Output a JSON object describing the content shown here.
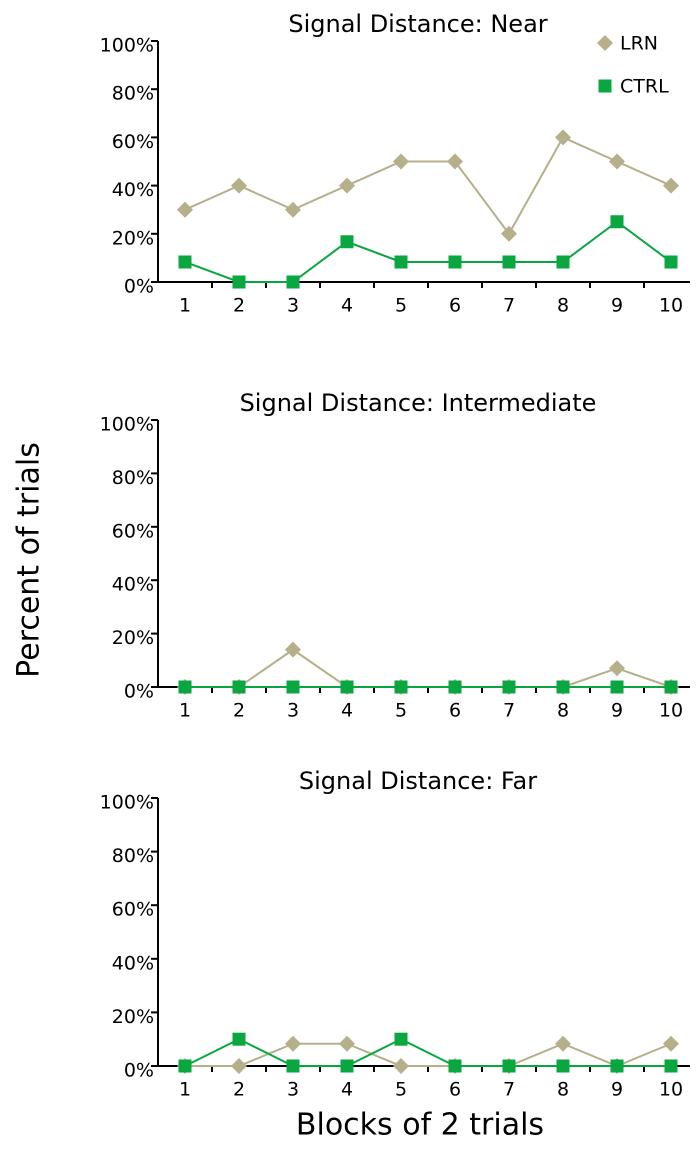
{
  "chart_data": [
    {
      "type": "line",
      "title": "Signal Distance: Near",
      "legend": "upper right",
      "categories": [
        "1",
        "2",
        "3",
        "4",
        "5",
        "6",
        "7",
        "8",
        "9",
        "10"
      ],
      "series": [
        {
          "name": "LRN",
          "color": "#b5b08a",
          "marker": "diamond",
          "values": [
            30,
            40,
            30,
            40,
            50,
            50,
            20,
            60,
            50,
            40
          ]
        },
        {
          "name": "CTRL",
          "color": "#0aa63f",
          "marker": "square",
          "values": [
            8.3,
            0,
            0,
            16.7,
            8.3,
            8.3,
            8.3,
            8.3,
            25,
            8.3
          ]
        }
      ],
      "ylim": [
        0,
        100
      ],
      "yticks": [
        {
          "value": 0,
          "label": "0%"
        },
        {
          "value": 20,
          "label": "20%"
        },
        {
          "value": 40,
          "label": "40%"
        },
        {
          "value": 60,
          "label": "60%"
        },
        {
          "value": 80,
          "label": "80%"
        },
        {
          "value": 100,
          "label": "100%"
        }
      ]
    },
    {
      "type": "line",
      "title": "Signal Distance: Intermediate",
      "categories": [
        "1",
        "2",
        "3",
        "4",
        "5",
        "6",
        "7",
        "8",
        "9",
        "10"
      ],
      "series": [
        {
          "name": "LRN",
          "color": "#b5b08a",
          "marker": "diamond",
          "values": [
            0,
            0,
            14,
            0,
            0,
            0,
            0,
            0,
            7,
            0
          ]
        },
        {
          "name": "CTRL",
          "color": "#0aa63f",
          "marker": "square",
          "values": [
            0,
            0,
            0,
            0,
            0,
            0,
            0,
            0,
            0,
            0
          ]
        }
      ],
      "ylim": [
        0,
        100
      ],
      "yticks": [
        {
          "value": 0,
          "label": "0%"
        },
        {
          "value": 20,
          "label": "20%"
        },
        {
          "value": 40,
          "label": "40%"
        },
        {
          "value": 60,
          "label": "60%"
        },
        {
          "value": 80,
          "label": "80%"
        },
        {
          "value": 100,
          "label": "100%"
        }
      ]
    },
    {
      "type": "line",
      "title": "Signal Distance: Far",
      "categories": [
        "1",
        "2",
        "3",
        "4",
        "5",
        "6",
        "7",
        "8",
        "9",
        "10"
      ],
      "series": [
        {
          "name": "LRN",
          "color": "#b5b08a",
          "marker": "diamond",
          "values": [
            0,
            0,
            8.3,
            8.3,
            0,
            0,
            0,
            8.3,
            0,
            8.3
          ]
        },
        {
          "name": "CTRL",
          "color": "#0aa63f",
          "marker": "square",
          "values": [
            0,
            10,
            0,
            0,
            10,
            0,
            0,
            0,
            0,
            0
          ]
        }
      ],
      "ylim": [
        0,
        100
      ],
      "yticks": [
        {
          "value": 0,
          "label": "0%"
        },
        {
          "value": 20,
          "label": "20%"
        },
        {
          "value": 40,
          "label": "40%"
        },
        {
          "value": 60,
          "label": "60%"
        },
        {
          "value": 80,
          "label": "80%"
        },
        {
          "value": 100,
          "label": "100%"
        }
      ]
    }
  ],
  "ylabel": "Percent of trials",
  "xlabel": "Blocks of 2 trials"
}
